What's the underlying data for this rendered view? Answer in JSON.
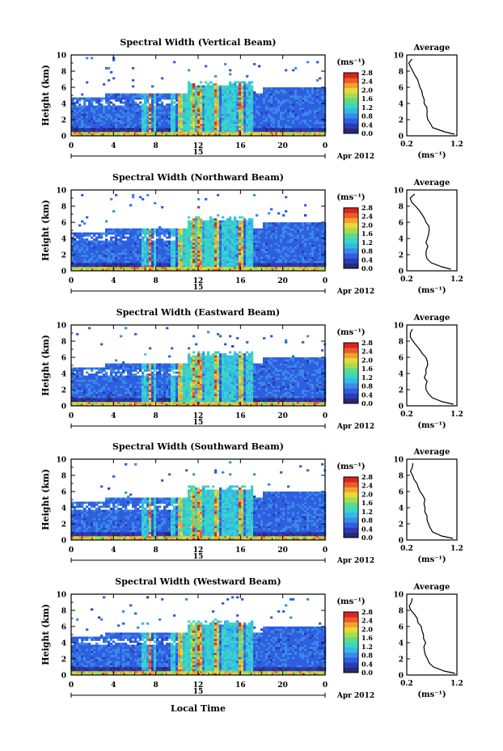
{
  "figure": {
    "xlabel": "Local Time",
    "date_label": "Apr 2012",
    "day_label": "15",
    "colorbar_unit": "(ms⁻¹)",
    "avg_title": "Average",
    "avg_xlabel": "(ms⁻¹)"
  },
  "chart_data": [
    {
      "type": "heatmap",
      "title": "Spectral Width (Vertical Beam)",
      "ylabel": "Height (km)",
      "xlim": [
        0,
        24
      ],
      "ylim": [
        0,
        10
      ],
      "xticks": [
        "0",
        "4",
        "8",
        "12",
        "16",
        "20",
        "0"
      ],
      "yticks": [
        "0",
        "2",
        "4",
        "6",
        "8",
        "10"
      ],
      "colorbar": {
        "ticks": [
          "0.0",
          "0.4",
          "0.8",
          "1.2",
          "1.6",
          "2.0",
          "2.4",
          "2.8"
        ],
        "range": [
          0,
          2.8
        ]
      },
      "average_profile": {
        "xlim": [
          0.2,
          1.2
        ],
        "xticks": [
          "0.2",
          "1.2"
        ],
        "height": [
          0.2,
          0.5,
          1,
          1.5,
          2,
          2.5,
          3,
          3.5,
          4,
          4.5,
          5,
          5.5,
          6,
          6.5,
          7,
          7.5,
          8,
          8.5,
          9,
          9.5
        ],
        "value": [
          1.15,
          0.95,
          0.72,
          0.66,
          0.64,
          0.62,
          0.6,
          0.58,
          0.56,
          0.54,
          0.52,
          0.5,
          0.47,
          0.45,
          0.42,
          0.38,
          0.32,
          0.26,
          0.24,
          0.3
        ]
      }
    },
    {
      "type": "heatmap",
      "title": "Spectral Width (Northward Beam)",
      "ylabel": "Height (km)",
      "xlim": [
        0,
        24
      ],
      "ylim": [
        0,
        10
      ],
      "xticks": [
        "0",
        "4",
        "8",
        "12",
        "16",
        "20",
        "0"
      ],
      "yticks": [
        "0",
        "2",
        "4",
        "6",
        "8",
        "10"
      ],
      "colorbar": {
        "ticks": [
          "0.0",
          "0.4",
          "0.8",
          "1.2",
          "1.6",
          "2.0",
          "2.4",
          "2.8"
        ],
        "range": [
          0,
          2.8
        ]
      },
      "average_profile": {
        "xlim": [
          0.2,
          1.2
        ],
        "xticks": [
          "0.2",
          "1.2"
        ],
        "height": [
          0.2,
          0.5,
          1,
          1.5,
          2,
          2.5,
          3,
          3.5,
          4,
          4.5,
          5,
          5.5,
          6,
          6.5,
          7,
          7.5,
          8,
          8.5,
          9,
          9.5
        ],
        "value": [
          1.1,
          0.9,
          0.68,
          0.62,
          0.6,
          0.6,
          0.62,
          0.58,
          0.6,
          0.62,
          0.64,
          0.66,
          0.6,
          0.55,
          0.5,
          0.44,
          0.36,
          0.3,
          0.28,
          0.34
        ]
      }
    },
    {
      "type": "heatmap",
      "title": "Spectral Width (Eastward Beam)",
      "ylabel": "Height (km)",
      "xlim": [
        0,
        24
      ],
      "ylim": [
        0,
        10
      ],
      "xticks": [
        "0",
        "4",
        "8",
        "12",
        "16",
        "20",
        "0"
      ],
      "yticks": [
        "0",
        "2",
        "4",
        "6",
        "8",
        "10"
      ],
      "colorbar": {
        "ticks": [
          "0.0",
          "0.4",
          "0.8",
          "1.2",
          "1.6",
          "2.0",
          "2.4",
          "2.8"
        ],
        "range": [
          0,
          2.8
        ]
      },
      "average_profile": {
        "xlim": [
          0.2,
          1.2
        ],
        "xticks": [
          "0.2",
          "1.2"
        ],
        "height": [
          0.2,
          0.5,
          1,
          1.5,
          2,
          2.5,
          3,
          3.5,
          4,
          4.5,
          5,
          5.5,
          6,
          6.5,
          7,
          7.5,
          8,
          8.5,
          9,
          9.5
        ],
        "value": [
          1.12,
          0.92,
          0.7,
          0.62,
          0.6,
          0.58,
          0.6,
          0.56,
          0.6,
          0.58,
          0.62,
          0.6,
          0.56,
          0.52,
          0.46,
          0.4,
          0.32,
          0.28,
          0.26,
          0.32
        ]
      }
    },
    {
      "type": "heatmap",
      "title": "Spectral Width (Southward Beam)",
      "ylabel": "Height (km)",
      "xlim": [
        0,
        24
      ],
      "ylim": [
        0,
        10
      ],
      "xticks": [
        "0",
        "4",
        "8",
        "12",
        "16",
        "20",
        "0"
      ],
      "yticks": [
        "0",
        "2",
        "4",
        "6",
        "8",
        "10"
      ],
      "colorbar": {
        "ticks": [
          "0.0",
          "0.4",
          "0.8",
          "1.2",
          "1.6",
          "2.0",
          "2.4",
          "2.8"
        ],
        "range": [
          0,
          2.8
        ]
      },
      "average_profile": {
        "xlim": [
          0.2,
          1.2
        ],
        "xticks": [
          "0.2",
          "1.2"
        ],
        "height": [
          0.2,
          0.5,
          1,
          1.5,
          2,
          2.5,
          3,
          3.5,
          4,
          4.5,
          5,
          5.5,
          6,
          6.5,
          7,
          7.5,
          8,
          8.5,
          9,
          9.5
        ],
        "value": [
          1.1,
          0.9,
          0.7,
          0.66,
          0.64,
          0.6,
          0.62,
          0.58,
          0.56,
          0.54,
          0.56,
          0.52,
          0.48,
          0.44,
          0.4,
          0.36,
          0.3,
          0.26,
          0.3,
          0.34
        ]
      }
    },
    {
      "type": "heatmap",
      "title": "Spectral Width (Westward Beam)",
      "ylabel": "Height (km)",
      "xlim": [
        0,
        24
      ],
      "ylim": [
        0,
        10
      ],
      "xticks": [
        "0",
        "4",
        "8",
        "12",
        "16",
        "20",
        "0"
      ],
      "yticks": [
        "0",
        "2",
        "4",
        "6",
        "8",
        "10"
      ],
      "colorbar": {
        "ticks": [
          "0.0",
          "0.4",
          "0.8",
          "1.2",
          "1.6",
          "2.0",
          "2.4",
          "2.8"
        ],
        "range": [
          0,
          2.8
        ]
      },
      "average_profile": {
        "xlim": [
          0.2,
          1.2
        ],
        "xticks": [
          "0.2",
          "1.2"
        ],
        "height": [
          0.2,
          0.5,
          1,
          1.5,
          2,
          2.5,
          3,
          3.5,
          4,
          4.5,
          5,
          5.5,
          6,
          6.5,
          7,
          7.5,
          8,
          8.5,
          9,
          9.5
        ],
        "value": [
          1.15,
          0.95,
          0.72,
          0.64,
          0.6,
          0.58,
          0.56,
          0.54,
          0.56,
          0.52,
          0.54,
          0.5,
          0.48,
          0.44,
          0.4,
          0.36,
          0.3,
          0.24,
          0.28,
          0.3
        ]
      }
    }
  ]
}
